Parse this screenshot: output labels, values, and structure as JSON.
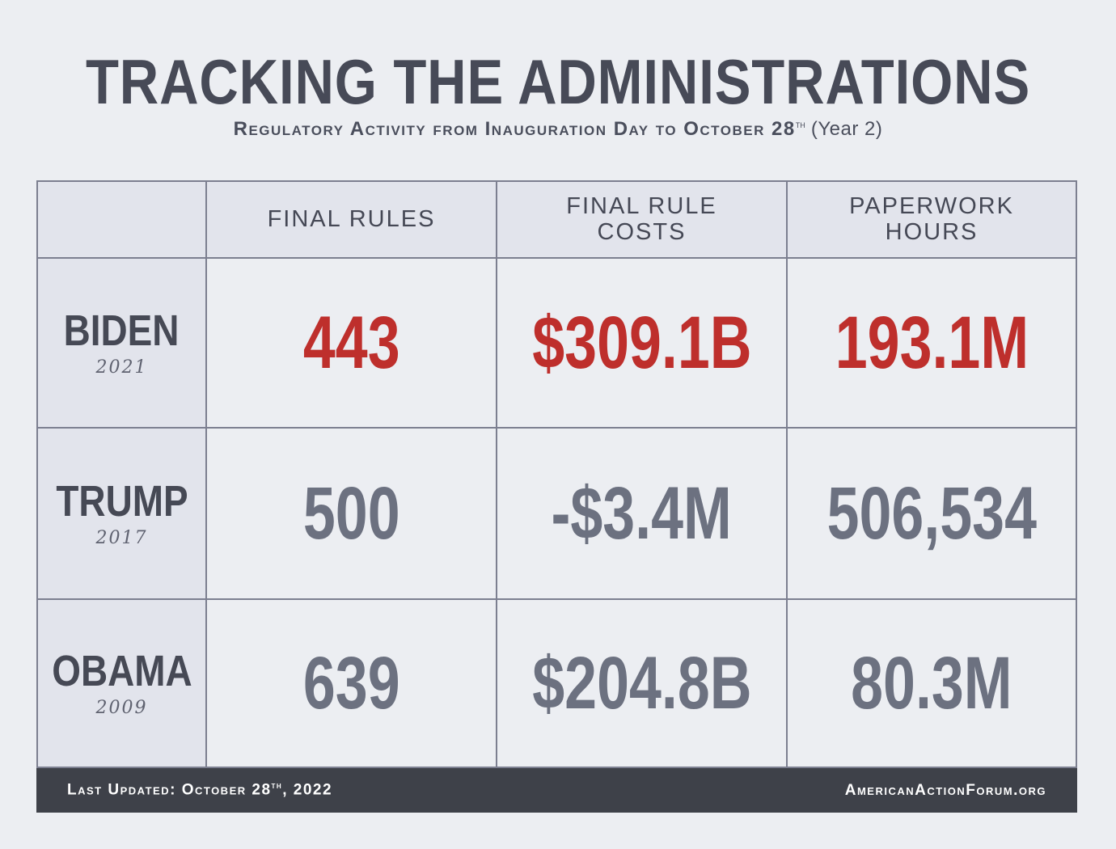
{
  "title": "TRACKING THE ADMINISTRATIONS",
  "subtitle": {
    "main": "Regulatory Activity from Inauguration Day to October 28",
    "sup": "th",
    "paren": " (Year 2)"
  },
  "colors": {
    "highlight": "#be2f2c",
    "normal": "#6c7180",
    "text_dark": "#464955",
    "footer_bg": "#3e4149"
  },
  "chart_data": {
    "type": "table",
    "columns": [
      "",
      "FINAL RULES",
      "FINAL RULE COSTS",
      "PAPERWORK HOURS"
    ],
    "rows": [
      {
        "name": "BIDEN",
        "year": "2021",
        "highlight": true,
        "values": [
          "443",
          "$309.1B",
          "193.1M"
        ]
      },
      {
        "name": "TRUMP",
        "year": "2017",
        "highlight": false,
        "values": [
          "500",
          "-$3.4M",
          "506,534"
        ]
      },
      {
        "name": "OBAMA",
        "year": "2009",
        "highlight": false,
        "values": [
          "639",
          "$204.8B",
          "80.3M"
        ]
      }
    ]
  },
  "footer": {
    "updated_prefix": "Last Updated: October 28",
    "updated_sup": "th",
    "updated_suffix": ", 2022",
    "site": "AmericanActionForum.org"
  }
}
